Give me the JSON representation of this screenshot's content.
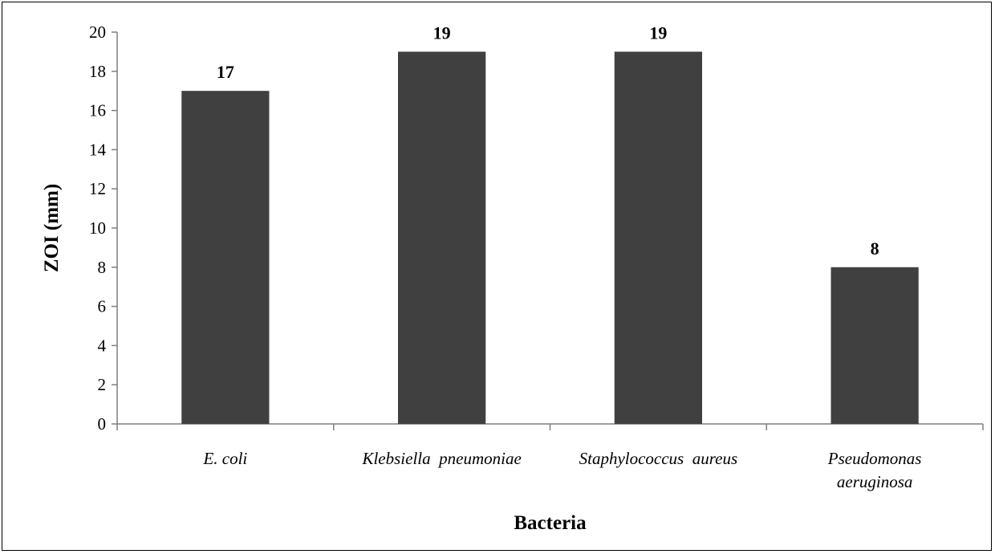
{
  "chart_data": {
    "type": "bar",
    "categories": [
      [
        "E. coli"
      ],
      [
        "Klebsiella  pneumoniae"
      ],
      [
        "Staphylococcus  aureus"
      ],
      [
        "Pseudomonas",
        "aeruginosa"
      ]
    ],
    "values": [
      17,
      19,
      19,
      8
    ],
    "data_labels": [
      "17",
      "19",
      "19",
      "8"
    ],
    "title": "",
    "xlabel": "Bacteria",
    "ylabel": "ZOI (mm)",
    "ylim": [
      0,
      20
    ],
    "yticks": [
      "0",
      "2",
      "4",
      "6",
      "8",
      "10",
      "12",
      "14",
      "16",
      "18",
      "20"
    ],
    "grid": false,
    "legend": "none",
    "colors": {
      "bar": "#404040",
      "axis": "#7f7f7f",
      "text": "#000000"
    }
  }
}
